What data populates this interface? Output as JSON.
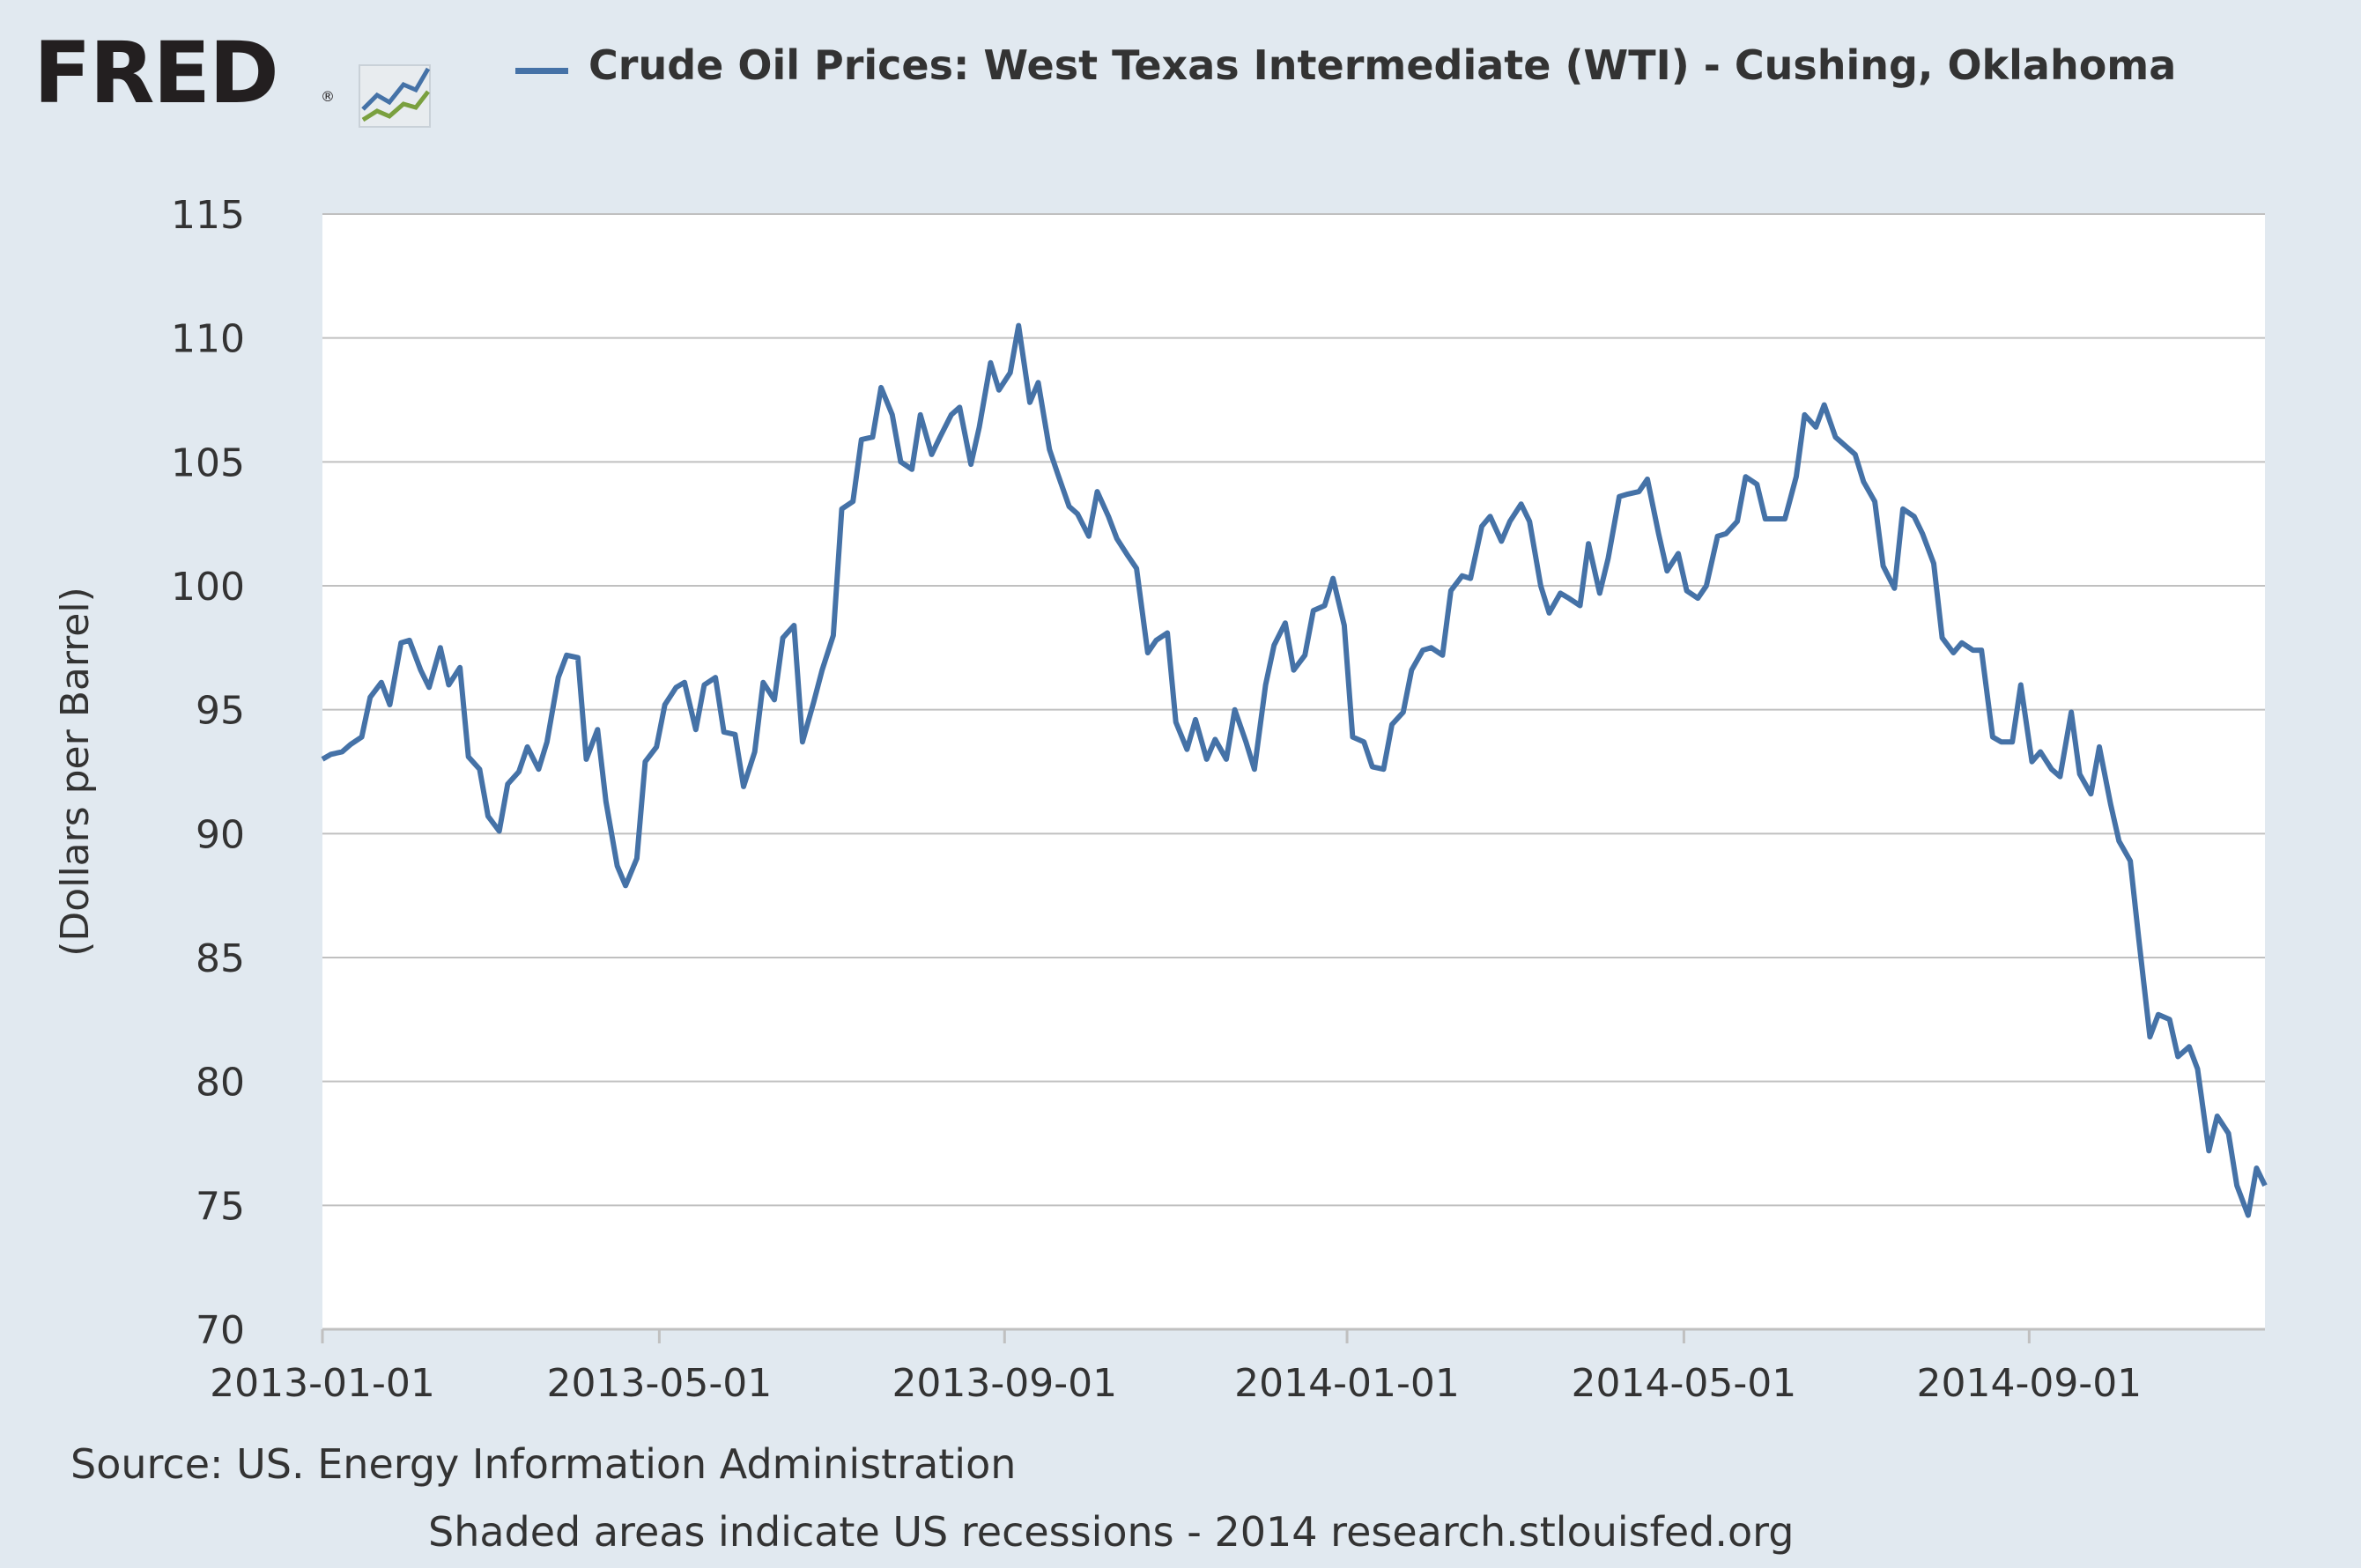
{
  "logo": {
    "text": "FRED",
    "mark": "®",
    "icon": "line-chart-icon",
    "colors": {
      "text": "#231f20",
      "line_blue": "#4572a7",
      "line_green": "#7aa03f"
    }
  },
  "colors": {
    "background": "#e1e9f0",
    "plot_background": "#ffffff",
    "series": "#4572a7",
    "grid": "#c0c0c0",
    "text": "#333333"
  },
  "source": "Source: US. Energy Information Administration",
  "footer": "Shaded areas indicate US recessions - 2014 research.stlouisfed.org",
  "chart_data": {
    "type": "line",
    "title": "Crude Oil Prices: West Texas Intermediate (WTI) - Cushing, Oklahoma",
    "xlabel": "",
    "ylabel": "(Dollars per Barrel)",
    "x_type": "date",
    "xlim": [
      "2013-01-01",
      "2014-11-24"
    ],
    "ylim": [
      70,
      115
    ],
    "yticks": [
      70,
      75,
      80,
      85,
      90,
      95,
      100,
      105,
      110,
      115
    ],
    "xticks": [
      "2013-01-01",
      "2013-05-01",
      "2013-09-01",
      "2014-01-01",
      "2014-05-01",
      "2014-09-01"
    ],
    "grid": true,
    "legend": "top-left",
    "series": [
      {
        "name": "Crude Oil Prices: West Texas Intermediate (WTI) - Cushing, Oklahoma",
        "color": "#4572a7",
        "points": [
          [
            "2013-01-01",
            93.0
          ],
          [
            "2013-01-04",
            93.2
          ],
          [
            "2013-01-08",
            93.3
          ],
          [
            "2013-01-11",
            93.6
          ],
          [
            "2013-01-15",
            93.9
          ],
          [
            "2013-01-18",
            95.5
          ],
          [
            "2013-01-22",
            96.1
          ],
          [
            "2013-01-25",
            95.2
          ],
          [
            "2013-01-29",
            97.7
          ],
          [
            "2013-02-01",
            97.8
          ],
          [
            "2013-02-05",
            96.6
          ],
          [
            "2013-02-08",
            95.9
          ],
          [
            "2013-02-12",
            97.5
          ],
          [
            "2013-02-15",
            96.0
          ],
          [
            "2013-02-19",
            96.7
          ],
          [
            "2013-02-22",
            93.1
          ],
          [
            "2013-02-26",
            92.6
          ],
          [
            "2013-03-01",
            90.7
          ],
          [
            "2013-03-05",
            90.1
          ],
          [
            "2013-03-08",
            92.0
          ],
          [
            "2013-03-12",
            92.5
          ],
          [
            "2013-03-15",
            93.5
          ],
          [
            "2013-03-19",
            92.6
          ],
          [
            "2013-03-22",
            93.7
          ],
          [
            "2013-03-26",
            96.3
          ],
          [
            "2013-03-29",
            97.2
          ],
          [
            "2013-04-02",
            97.1
          ],
          [
            "2013-04-05",
            93.0
          ],
          [
            "2013-04-09",
            94.2
          ],
          [
            "2013-04-12",
            91.3
          ],
          [
            "2013-04-16",
            88.7
          ],
          [
            "2013-04-19",
            87.9
          ],
          [
            "2013-04-23",
            89.0
          ],
          [
            "2013-04-26",
            92.9
          ],
          [
            "2013-04-30",
            93.5
          ],
          [
            "2013-05-03",
            95.2
          ],
          [
            "2013-05-07",
            95.9
          ],
          [
            "2013-05-10",
            96.1
          ],
          [
            "2013-05-14",
            94.2
          ],
          [
            "2013-05-17",
            96.0
          ],
          [
            "2013-05-21",
            96.3
          ],
          [
            "2013-05-24",
            94.1
          ],
          [
            "2013-05-28",
            94.0
          ],
          [
            "2013-05-31",
            91.9
          ],
          [
            "2013-06-04",
            93.3
          ],
          [
            "2013-06-07",
            96.1
          ],
          [
            "2013-06-11",
            95.4
          ],
          [
            "2013-06-14",
            97.9
          ],
          [
            "2013-06-18",
            98.4
          ],
          [
            "2013-06-21",
            93.7
          ],
          [
            "2013-06-25",
            95.3
          ],
          [
            "2013-06-28",
            96.6
          ],
          [
            "2013-07-02",
            98.0
          ],
          [
            "2013-07-05",
            103.1
          ],
          [
            "2013-07-09",
            103.4
          ],
          [
            "2013-07-12",
            105.9
          ],
          [
            "2013-07-16",
            106.0
          ],
          [
            "2013-07-19",
            108.0
          ],
          [
            "2013-07-23",
            106.9
          ],
          [
            "2013-07-26",
            105.0
          ],
          [
            "2013-07-30",
            104.7
          ],
          [
            "2013-08-02",
            106.9
          ],
          [
            "2013-08-06",
            105.3
          ],
          [
            "2013-08-09",
            106.0
          ],
          [
            "2013-08-13",
            106.9
          ],
          [
            "2013-08-16",
            107.2
          ],
          [
            "2013-08-20",
            104.9
          ],
          [
            "2013-08-23",
            106.4
          ],
          [
            "2013-08-27",
            109.0
          ],
          [
            "2013-08-30",
            107.9
          ],
          [
            "2013-09-03",
            108.6
          ],
          [
            "2013-09-06",
            110.5
          ],
          [
            "2013-09-10",
            107.4
          ],
          [
            "2013-09-13",
            108.2
          ],
          [
            "2013-09-17",
            105.5
          ],
          [
            "2013-09-20",
            104.5
          ],
          [
            "2013-09-24",
            103.2
          ],
          [
            "2013-09-27",
            102.9
          ],
          [
            "2013-10-01",
            102.0
          ],
          [
            "2013-10-04",
            103.8
          ],
          [
            "2013-10-08",
            102.8
          ],
          [
            "2013-10-11",
            101.9
          ],
          [
            "2013-10-15",
            101.2
          ],
          [
            "2013-10-18",
            100.7
          ],
          [
            "2013-10-22",
            97.3
          ],
          [
            "2013-10-25",
            97.8
          ],
          [
            "2013-10-29",
            98.1
          ],
          [
            "2013-11-01",
            94.5
          ],
          [
            "2013-11-05",
            93.4
          ],
          [
            "2013-11-08",
            94.6
          ],
          [
            "2013-11-12",
            93.0
          ],
          [
            "2013-11-15",
            93.8
          ],
          [
            "2013-11-19",
            93.0
          ],
          [
            "2013-11-22",
            95.0
          ],
          [
            "2013-11-26",
            93.7
          ],
          [
            "2013-11-29",
            92.6
          ],
          [
            "2013-12-03",
            96.0
          ],
          [
            "2013-12-06",
            97.6
          ],
          [
            "2013-12-10",
            98.5
          ],
          [
            "2013-12-13",
            96.6
          ],
          [
            "2013-12-17",
            97.2
          ],
          [
            "2013-12-20",
            99.0
          ],
          [
            "2013-12-24",
            99.2
          ],
          [
            "2013-12-27",
            100.3
          ],
          [
            "2013-12-31",
            98.4
          ],
          [
            "2014-01-03",
            93.9
          ],
          [
            "2014-01-07",
            93.7
          ],
          [
            "2014-01-10",
            92.7
          ],
          [
            "2014-01-14",
            92.6
          ],
          [
            "2014-01-17",
            94.4
          ],
          [
            "2014-01-21",
            94.9
          ],
          [
            "2014-01-24",
            96.6
          ],
          [
            "2014-01-28",
            97.4
          ],
          [
            "2014-01-31",
            97.5
          ],
          [
            "2014-02-04",
            97.2
          ],
          [
            "2014-02-07",
            99.8
          ],
          [
            "2014-02-11",
            100.4
          ],
          [
            "2014-02-14",
            100.3
          ],
          [
            "2014-02-18",
            102.4
          ],
          [
            "2014-02-21",
            102.8
          ],
          [
            "2014-02-25",
            101.8
          ],
          [
            "2014-02-28",
            102.6
          ],
          [
            "2014-03-04",
            103.3
          ],
          [
            "2014-03-07",
            102.6
          ],
          [
            "2014-03-11",
            100.0
          ],
          [
            "2014-03-14",
            98.9
          ],
          [
            "2014-03-18",
            99.7
          ],
          [
            "2014-03-21",
            99.5
          ],
          [
            "2014-03-25",
            99.2
          ],
          [
            "2014-03-28",
            101.7
          ],
          [
            "2014-04-01",
            99.7
          ],
          [
            "2014-04-04",
            101.1
          ],
          [
            "2014-04-08",
            103.6
          ],
          [
            "2014-04-11",
            103.7
          ],
          [
            "2014-04-15",
            103.8
          ],
          [
            "2014-04-18",
            104.3
          ],
          [
            "2014-04-22",
            102.1
          ],
          [
            "2014-04-25",
            100.6
          ],
          [
            "2014-04-29",
            101.3
          ],
          [
            "2014-05-02",
            99.8
          ],
          [
            "2014-05-06",
            99.5
          ],
          [
            "2014-05-09",
            100.0
          ],
          [
            "2014-05-13",
            102.0
          ],
          [
            "2014-05-16",
            102.1
          ],
          [
            "2014-05-20",
            102.6
          ],
          [
            "2014-05-23",
            104.4
          ],
          [
            "2014-05-27",
            104.1
          ],
          [
            "2014-05-30",
            102.7
          ],
          [
            "2014-06-03",
            102.7
          ],
          [
            "2014-06-06",
            102.7
          ],
          [
            "2014-06-10",
            104.4
          ],
          [
            "2014-06-13",
            106.9
          ],
          [
            "2014-06-17",
            106.4
          ],
          [
            "2014-06-20",
            107.3
          ],
          [
            "2014-06-24",
            106.0
          ],
          [
            "2014-06-27",
            105.7
          ],
          [
            "2014-07-01",
            105.3
          ],
          [
            "2014-07-04",
            104.2
          ],
          [
            "2014-07-08",
            103.4
          ],
          [
            "2014-07-11",
            100.8
          ],
          [
            "2014-07-15",
            99.9
          ],
          [
            "2014-07-18",
            103.1
          ],
          [
            "2014-07-22",
            102.8
          ],
          [
            "2014-07-25",
            102.1
          ],
          [
            "2014-07-29",
            100.9
          ],
          [
            "2014-08-01",
            97.9
          ],
          [
            "2014-08-05",
            97.3
          ],
          [
            "2014-08-08",
            97.7
          ],
          [
            "2014-08-12",
            97.4
          ],
          [
            "2014-08-15",
            97.4
          ],
          [
            "2014-08-19",
            93.9
          ],
          [
            "2014-08-22",
            93.7
          ],
          [
            "2014-08-26",
            93.7
          ],
          [
            "2014-08-29",
            96.0
          ],
          [
            "2014-09-02",
            92.9
          ],
          [
            "2014-09-05",
            93.3
          ],
          [
            "2014-09-09",
            92.6
          ],
          [
            "2014-09-12",
            92.3
          ],
          [
            "2014-09-16",
            94.9
          ],
          [
            "2014-09-19",
            92.4
          ],
          [
            "2014-09-23",
            91.6
          ],
          [
            "2014-09-26",
            93.5
          ],
          [
            "2014-09-30",
            91.2
          ],
          [
            "2014-10-03",
            89.7
          ],
          [
            "2014-10-07",
            88.9
          ],
          [
            "2014-10-10",
            85.8
          ],
          [
            "2014-10-14",
            81.8
          ],
          [
            "2014-10-17",
            82.7
          ],
          [
            "2014-10-21",
            82.5
          ],
          [
            "2014-10-24",
            81.0
          ],
          [
            "2014-10-28",
            81.4
          ],
          [
            "2014-10-31",
            80.5
          ],
          [
            "2014-11-04",
            77.2
          ],
          [
            "2014-11-07",
            78.6
          ],
          [
            "2014-11-11",
            77.9
          ],
          [
            "2014-11-14",
            75.8
          ],
          [
            "2014-11-18",
            74.6
          ],
          [
            "2014-11-21",
            76.5
          ],
          [
            "2014-11-24",
            75.8
          ]
        ]
      }
    ]
  }
}
